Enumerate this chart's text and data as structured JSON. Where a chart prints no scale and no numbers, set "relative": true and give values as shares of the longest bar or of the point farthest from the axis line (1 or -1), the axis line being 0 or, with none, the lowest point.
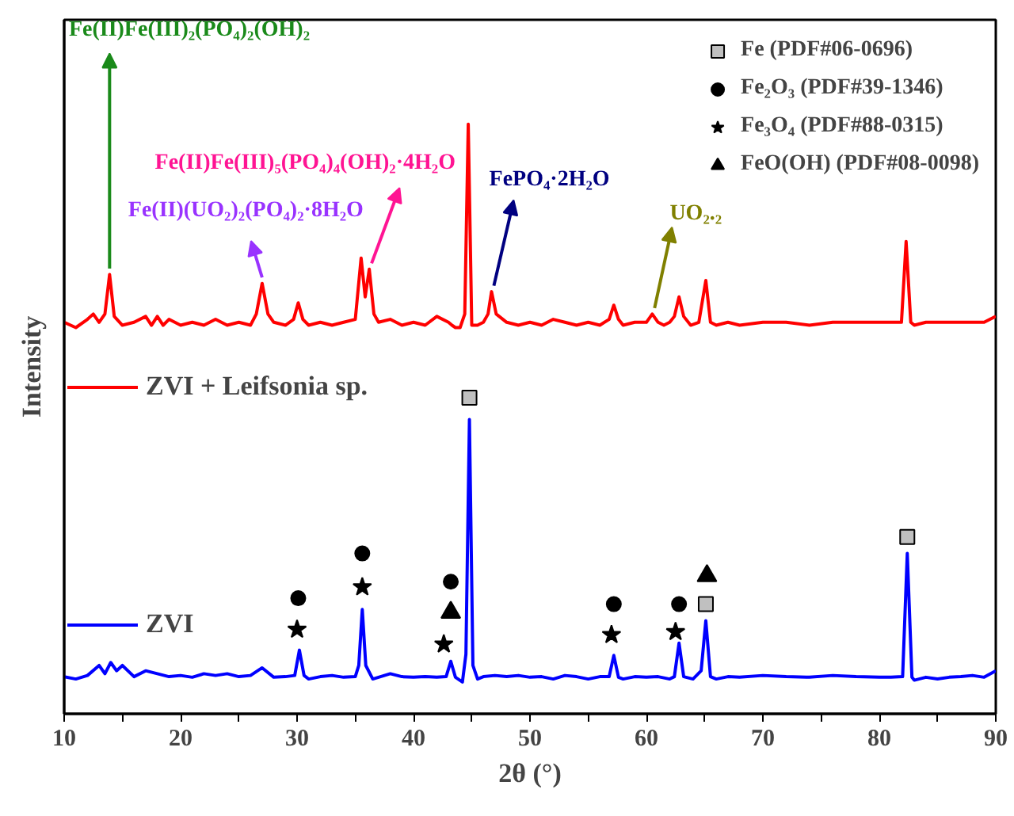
{
  "chart_data": {
    "type": "line",
    "relative": true,
    "xlabel": "2θ (°)",
    "ylabel": "Intensity",
    "xlim": [
      10,
      90
    ],
    "xticks": [
      10,
      {
        "value": 15,
        "label": null
      },
      20,
      {
        "value": 25,
        "label": null
      },
      30,
      {
        "value": 35,
        "label": null
      },
      40,
      {
        "value": 45,
        "label": null
      },
      50,
      {
        "value": 55,
        "label": null
      },
      60,
      {
        "value": 65,
        "label": null
      },
      70,
      {
        "value": 75,
        "label": null
      },
      80,
      {
        "value": 85,
        "label": null
      },
      90
    ],
    "grid": false,
    "legend": "top right",
    "line_style": "solid",
    "series": [
      {
        "name": "ZVI + Leifsonia sp.",
        "color": "#ff0000",
        "marker": "none",
        "x": [
          10,
          11,
          12,
          12.5,
          13,
          13.5,
          13.9,
          14.3,
          15,
          16,
          17,
          17.5,
          18,
          18.5,
          19,
          20,
          21,
          22,
          23,
          24,
          25,
          26,
          26.5,
          27,
          27.5,
          28,
          29,
          29.7,
          30.1,
          30.5,
          31,
          32,
          33,
          34,
          35,
          35.5,
          35.85,
          36.2,
          36.6,
          37,
          38,
          39,
          40,
          41,
          42,
          43,
          43.3,
          43.6,
          44,
          44.4,
          44.7,
          45,
          45.5,
          46,
          46.4,
          46.7,
          47.1,
          48,
          49,
          50,
          51,
          52,
          53,
          54,
          55,
          56,
          56.8,
          57.2,
          57.6,
          58,
          59,
          60,
          60.5,
          61,
          61.5,
          62,
          62.4,
          62.8,
          63.2,
          63.8,
          64.5,
          65.1,
          65.5,
          66,
          67,
          68,
          70,
          72,
          74,
          76,
          78,
          80,
          81,
          81.9,
          82.3,
          82.7,
          83,
          84,
          85,
          86,
          87,
          88,
          89,
          90
        ],
        "values": [
          0.664,
          0.655,
          0.669,
          0.678,
          0.664,
          0.678,
          0.745,
          0.674,
          0.659,
          0.664,
          0.674,
          0.659,
          0.674,
          0.659,
          0.669,
          0.659,
          0.664,
          0.659,
          0.669,
          0.659,
          0.664,
          0.659,
          0.678,
          0.73,
          0.678,
          0.664,
          0.659,
          0.669,
          0.697,
          0.669,
          0.659,
          0.664,
          0.659,
          0.664,
          0.669,
          0.773,
          0.707,
          0.754,
          0.678,
          0.664,
          0.669,
          0.659,
          0.664,
          0.659,
          0.674,
          0.664,
          0.659,
          0.655,
          0.655,
          0.678,
          1.0,
          0.659,
          0.659,
          0.664,
          0.678,
          0.716,
          0.678,
          0.664,
          0.659,
          0.664,
          0.659,
          0.669,
          0.664,
          0.659,
          0.664,
          0.659,
          0.669,
          0.693,
          0.669,
          0.659,
          0.664,
          0.664,
          0.678,
          0.664,
          0.659,
          0.664,
          0.674,
          0.707,
          0.674,
          0.659,
          0.664,
          0.735,
          0.664,
          0.659,
          0.664,
          0.659,
          0.664,
          0.664,
          0.659,
          0.664,
          0.664,
          0.664,
          0.664,
          0.664,
          0.801,
          0.664,
          0.659,
          0.664,
          0.664,
          0.664,
          0.664,
          0.664,
          0.664,
          0.674
        ]
      },
      {
        "name": "ZVI",
        "color": "#0000ff",
        "marker": "none",
        "x": [
          10,
          11,
          12,
          13,
          13.5,
          14,
          14.5,
          15,
          16,
          17,
          18,
          19,
          20,
          21,
          22,
          23,
          24,
          25,
          26,
          27,
          28,
          29,
          29.8,
          30.2,
          30.6,
          31,
          32,
          33,
          34,
          35,
          35.3,
          35.6,
          35.9,
          36.5,
          37,
          38,
          39,
          40,
          41,
          42,
          42.8,
          43.2,
          43.6,
          44.2,
          44.5,
          44.8,
          45.1,
          45.5,
          46,
          47,
          48,
          49,
          50,
          51,
          52,
          53,
          54,
          55,
          56,
          56.8,
          57.2,
          57.6,
          58,
          59,
          60,
          61,
          62,
          62.4,
          62.8,
          63.2,
          64,
          64.7,
          65.1,
          65.5,
          66,
          67,
          68,
          70,
          72,
          74,
          76,
          78,
          80,
          81,
          82,
          82.4,
          82.8,
          83,
          84,
          85,
          86,
          87,
          88,
          89,
          90
        ],
        "values": [
          0.063,
          0.059,
          0.065,
          0.082,
          0.068,
          0.087,
          0.073,
          0.082,
          0.063,
          0.073,
          0.068,
          0.063,
          0.065,
          0.062,
          0.068,
          0.065,
          0.068,
          0.063,
          0.065,
          0.078,
          0.062,
          0.063,
          0.065,
          0.108,
          0.065,
          0.059,
          0.063,
          0.065,
          0.062,
          0.063,
          0.082,
          0.177,
          0.082,
          0.059,
          0.062,
          0.068,
          0.063,
          0.062,
          0.063,
          0.062,
          0.063,
          0.089,
          0.062,
          0.054,
          0.101,
          0.499,
          0.082,
          0.059,
          0.063,
          0.065,
          0.063,
          0.065,
          0.062,
          0.063,
          0.059,
          0.065,
          0.063,
          0.059,
          0.063,
          0.063,
          0.099,
          0.062,
          0.059,
          0.063,
          0.062,
          0.063,
          0.059,
          0.063,
          0.12,
          0.063,
          0.059,
          0.073,
          0.158,
          0.063,
          0.059,
          0.063,
          0.062,
          0.065,
          0.063,
          0.062,
          0.065,
          0.063,
          0.062,
          0.062,
          0.063,
          0.272,
          0.062,
          0.057,
          0.062,
          0.059,
          0.062,
          0.063,
          0.065,
          0.062,
          0.073
        ]
      },
      {
        "name": "Fe (PDF#06-0696)",
        "type": "scatter",
        "marker": "square",
        "color": "#c0c0c0",
        "x": [
          44.8,
          65.1,
          82.4
        ],
        "values": [
          0.536,
          0.186,
          0.3
        ]
      },
      {
        "name": "Fe₂O₃ (PDF#39-1346)",
        "type": "scatter",
        "marker": "circle",
        "color": "#000000",
        "x": [
          30.1,
          35.6,
          43.2,
          57.2,
          62.8
        ],
        "values": [
          0.196,
          0.272,
          0.224,
          0.186,
          0.186
        ]
      },
      {
        "name": "Fe₃O₄ (PDF#88-0315)",
        "type": "scatter",
        "marker": "star",
        "color": "#000000",
        "x": [
          30.0,
          35.6,
          42.6,
          57.0,
          62.5
        ],
        "values": [
          0.143,
          0.215,
          0.118,
          0.134,
          0.139
        ]
      },
      {
        "name": "FeO(OH) (PDF#08-0098)",
        "type": "scatter",
        "marker": "triangle",
        "color": "#000000",
        "x": [
          43.2,
          65.2
        ],
        "values": [
          0.172,
          0.234
        ]
      }
    ],
    "annotations": [
      {
        "text": "Fe(II)Fe(III)₂(PO₄)₂(OH)₂",
        "x": 13.9,
        "y": 0.745
      },
      {
        "text": "Fe(II)(UO₂)₂(PO₄)₂·8H₂O",
        "x": 27,
        "y": 0.73
      },
      {
        "text": "Fe(II)Fe(III)₅(PO₄)₄(OH)₂·4H₂O",
        "x": 36.2,
        "y": 0.754
      },
      {
        "text": "FePO₄·2H₂O",
        "x": 46.7,
        "y": 0.716
      },
      {
        "text": "UO₂.₂",
        "x": 60.5,
        "y": 0.678
      }
    ]
  }
}
